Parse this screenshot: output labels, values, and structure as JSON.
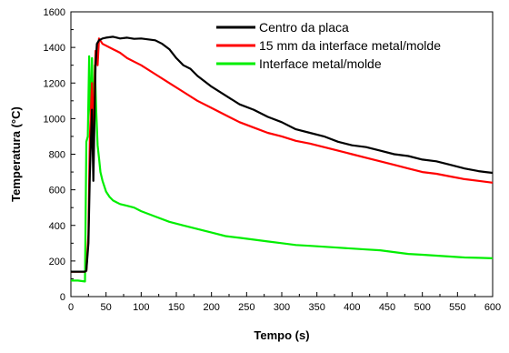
{
  "chart_data": {
    "type": "line",
    "xlabel": "Tempo (s)",
    "ylabel": "Temperatura (°C)",
    "xlim": [
      0,
      600
    ],
    "ylim": [
      0,
      1600
    ],
    "xticks": [
      0,
      50,
      100,
      150,
      200,
      250,
      300,
      350,
      400,
      450,
      500,
      550,
      600
    ],
    "yticks": [
      0,
      200,
      400,
      600,
      800,
      1000,
      1200,
      1400,
      1600
    ],
    "grid": false,
    "legend_position": "top-right",
    "series": [
      {
        "name": "Centro da placa",
        "color": "#000000",
        "x": [
          0,
          20,
          22,
          25,
          27,
          30,
          32,
          35,
          37,
          40,
          45,
          50,
          60,
          70,
          80,
          90,
          100,
          110,
          120,
          130,
          140,
          150,
          160,
          170,
          180,
          190,
          200,
          220,
          240,
          260,
          280,
          300,
          320,
          340,
          360,
          380,
          400,
          420,
          440,
          460,
          480,
          500,
          520,
          540,
          560,
          580,
          590,
          600
        ],
        "y": [
          140,
          140,
          145,
          300,
          700,
          1050,
          650,
          1300,
          1420,
          1440,
          1450,
          1455,
          1460,
          1450,
          1455,
          1448,
          1450,
          1445,
          1440,
          1420,
          1390,
          1340,
          1300,
          1280,
          1240,
          1210,
          1180,
          1130,
          1080,
          1050,
          1010,
          980,
          940,
          920,
          900,
          870,
          850,
          840,
          820,
          800,
          790,
          770,
          760,
          740,
          720,
          705,
          700,
          695
        ]
      },
      {
        "name": "15 mm da interface metal/molde",
        "color": "#ff0000",
        "x": [
          0,
          20,
          22,
          25,
          27,
          30,
          32,
          35,
          38,
          40,
          45,
          50,
          60,
          70,
          80,
          90,
          100,
          120,
          140,
          160,
          180,
          200,
          220,
          240,
          260,
          280,
          300,
          320,
          340,
          360,
          380,
          400,
          420,
          440,
          460,
          480,
          500,
          520,
          540,
          560,
          580,
          600
        ],
        "y": [
          140,
          140,
          145,
          350,
          900,
          1200,
          900,
          1380,
          1300,
          1450,
          1420,
          1410,
          1390,
          1370,
          1340,
          1320,
          1300,
          1250,
          1200,
          1150,
          1100,
          1060,
          1020,
          980,
          950,
          920,
          900,
          875,
          860,
          840,
          820,
          800,
          780,
          760,
          740,
          720,
          700,
          690,
          675,
          660,
          650,
          640
        ]
      },
      {
        "name": "Interface metal/molde",
        "color": "#00ee00",
        "x": [
          0,
          10,
          20,
          22,
          24,
          26,
          27,
          28,
          30,
          32,
          34,
          36,
          38,
          40,
          42,
          45,
          50,
          55,
          60,
          70,
          80,
          90,
          100,
          120,
          140,
          160,
          180,
          200,
          220,
          240,
          260,
          280,
          300,
          320,
          340,
          360,
          380,
          400,
          420,
          440,
          460,
          480,
          500,
          520,
          540,
          560,
          580,
          600
        ],
        "y": [
          90,
          90,
          85,
          870,
          900,
          1350,
          1100,
          1000,
          1340,
          900,
          1300,
          1050,
          850,
          780,
          700,
          650,
          590,
          560,
          540,
          520,
          510,
          500,
          480,
          450,
          420,
          400,
          380,
          360,
          340,
          330,
          320,
          310,
          300,
          290,
          285,
          280,
          275,
          270,
          265,
          260,
          250,
          240,
          235,
          230,
          225,
          220,
          218,
          215
        ]
      }
    ]
  }
}
